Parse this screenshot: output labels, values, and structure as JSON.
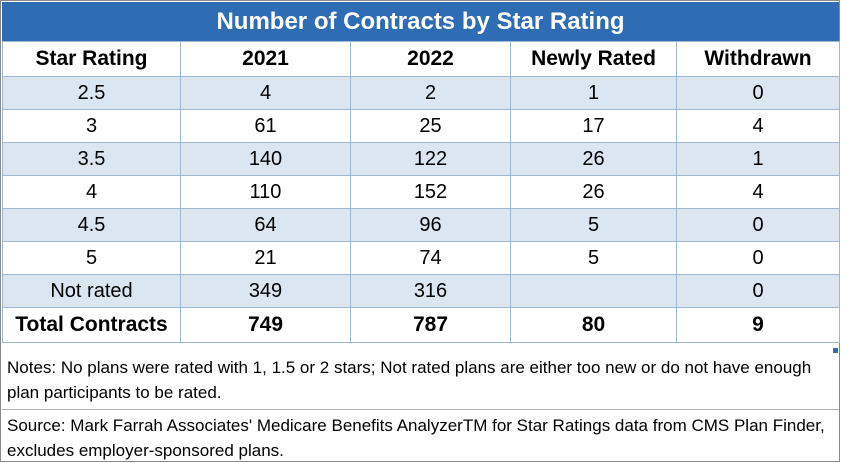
{
  "chart_data": {
    "type": "table",
    "title": "Number of Contracts by Star Rating",
    "columns": [
      "Star Rating",
      "2021",
      "2022",
      "Newly Rated",
      "Withdrawn"
    ],
    "rows": [
      [
        "2.5",
        "4",
        "2",
        "1",
        "0"
      ],
      [
        "3",
        "61",
        "25",
        "17",
        "4"
      ],
      [
        "3.5",
        "140",
        "122",
        "26",
        "1"
      ],
      [
        "4",
        "110",
        "152",
        "26",
        "4"
      ],
      [
        "4.5",
        "64",
        "96",
        "5",
        "0"
      ],
      [
        "5",
        "21",
        "74",
        "5",
        "0"
      ],
      [
        "Not rated",
        "349",
        "316",
        "",
        "0"
      ]
    ],
    "total": [
      "Total Contracts",
      "749",
      "787",
      "80",
      "9"
    ],
    "notes": "Notes: No plans were rated with 1, 1.5 or 2 stars; Not rated plans are either too new or do not have enough plan participants to be rated.",
    "source": "Source: Mark Farrah Associates' Medicare Benefits AnalyzerTM for Star Ratings data from CMS Plan Finder, excludes employer-sponsored plans."
  },
  "colors": {
    "title_background": "#2e6db4",
    "title_text": "#ffffff",
    "shaded_row": "#dce6f1",
    "border": "#9fb6cf"
  }
}
